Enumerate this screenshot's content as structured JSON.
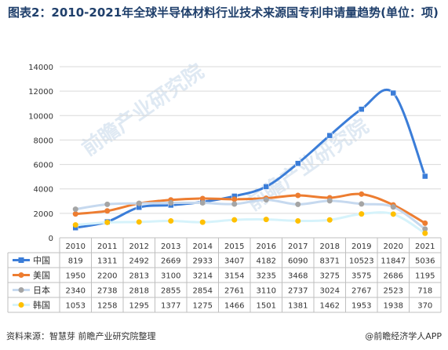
{
  "title": "图表2：2010-2021年全球半导体材料行业技术来源国专利申请量趋势(单位：项)",
  "source": "资料来源：智慧芽 前瞻产业研究院整理",
  "brand": "@前瞻经济学人APP",
  "watermark": "前瞻产业研究院",
  "chart_data": {
    "type": "line",
    "title": "图表2：2010-2021年全球半导体材料行业技术来源国专利申请量趋势(单位：项)",
    "categories": [
      "2010",
      "2011",
      "2012",
      "2013",
      "2014",
      "2015",
      "2016",
      "2017",
      "2018",
      "2019",
      "2020",
      "2021"
    ],
    "ylim": [
      0,
      14000
    ],
    "yticks": [
      0,
      2000,
      4000,
      6000,
      8000,
      10000,
      12000,
      14000
    ],
    "grid": true,
    "legend": "data-table-left",
    "series": [
      {
        "name": "中国",
        "color": "#3b7dd8",
        "marker": "square",
        "values": [
          819,
          1311,
          2492,
          2669,
          2933,
          3407,
          4182,
          6090,
          8371,
          10523,
          11847,
          5036
        ]
      },
      {
        "name": "美国",
        "color": "#ed7d31",
        "marker": "circle",
        "values": [
          1950,
          2200,
          2813,
          3100,
          3214,
          3154,
          3235,
          3468,
          3275,
          3575,
          2686,
          1195
        ]
      },
      {
        "name": "日本",
        "color": "#a5a5a5",
        "marker": "circle",
        "line_color": "#c6d9ef",
        "values": [
          2340,
          2738,
          2818,
          2855,
          2854,
          2761,
          3110,
          2737,
          3024,
          2767,
          2523,
          718
        ]
      },
      {
        "name": "韩国",
        "color": "#ffc000",
        "marker": "circle",
        "line_color": "#d6f3fb",
        "values": [
          1053,
          1258,
          1295,
          1377,
          1275,
          1466,
          1501,
          1381,
          1462,
          1953,
          1938,
          370
        ]
      }
    ]
  }
}
